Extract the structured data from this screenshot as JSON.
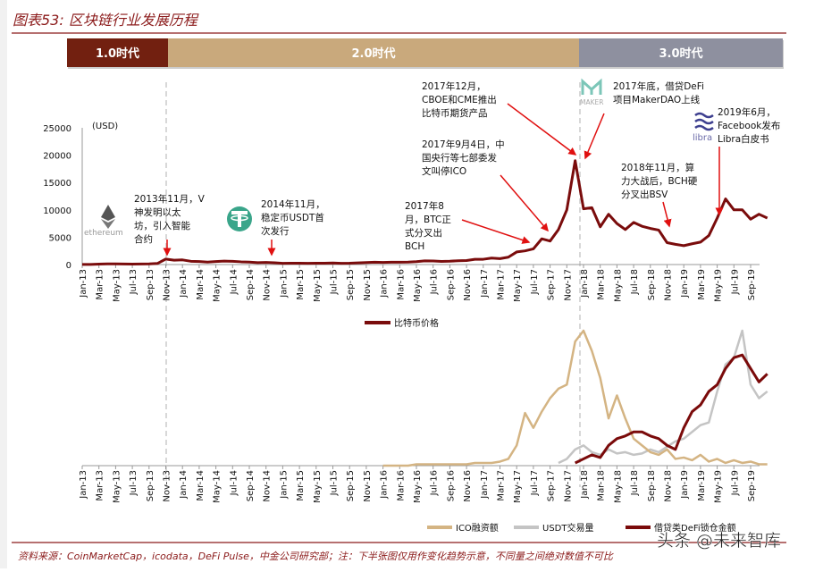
{
  "title": "图表53: 区块链行业发展历程",
  "eras": [
    {
      "label": "1.0时代",
      "color": "#722010",
      "start": "Jan-13",
      "end": "Nov-13"
    },
    {
      "label": "2.0时代",
      "color": "#c9a97c",
      "start": "Nov-13",
      "end": "Dec-17"
    },
    {
      "label": "3.0时代",
      "color": "#8e909f",
      "start": "Dec-17",
      "end": "Nov-19"
    }
  ],
  "annotations": [
    {
      "id": "ethereum",
      "lines": [
        "2013年11月，V",
        "神发明以太",
        "坊，引入智能",
        "合约"
      ],
      "logo_text": "ethereum",
      "icon": "ethereum-logo"
    },
    {
      "id": "usdt",
      "lines": [
        "2014年11月，",
        "稳定币USDT首",
        "次发行"
      ],
      "icon": "tether-logo"
    },
    {
      "id": "bch",
      "lines": [
        "2017年8",
        "月，BTC正",
        "式分叉出",
        "BCH"
      ]
    },
    {
      "id": "ico-ban",
      "lines": [
        "2017年9月4日，中",
        "国央行等七部委发",
        "文叫停ICO"
      ]
    },
    {
      "id": "futures",
      "lines": [
        "2017年12月，",
        "CBOE和CME推出",
        "比特币期货产品"
      ]
    },
    {
      "id": "makerdao",
      "lines": [
        "2017年底，借贷DeFi",
        "项目MakerDAO上线"
      ],
      "logo_text": "MAKER",
      "icon": "maker-logo"
    },
    {
      "id": "bsv",
      "lines": [
        "2018年11月，算",
        "力大战后，BCH硬",
        "分叉出BSV"
      ]
    },
    {
      "id": "libra",
      "lines": [
        "2019年6月，",
        "Facebook发布",
        "Libra白皮书"
      ],
      "logo_text": "libra",
      "icon": "libra-logo"
    }
  ],
  "chart_data": [
    {
      "type": "line",
      "ylabel": "(USD)",
      "ylim": [
        0,
        25000
      ],
      "yticks": [
        "0",
        "5000",
        "10000",
        "15000",
        "20000",
        "25000"
      ],
      "xtick_labels": [
        "Jan-13",
        "Mar-13",
        "May-13",
        "Jul-13",
        "Sep-13",
        "Nov-13",
        "Jan-14",
        "Mar-14",
        "May-14",
        "Jul-14",
        "Sep-14",
        "Nov-14",
        "Jan-15",
        "Mar-15",
        "May-15",
        "Jul-15",
        "Sep-15",
        "Nov-15",
        "Jan-16",
        "Mar-16",
        "May-16",
        "Jul-16",
        "Sep-16",
        "Nov-16",
        "Jan-17",
        "Mar-17",
        "May-17",
        "Jul-17",
        "Sep-17",
        "Nov-17",
        "Jan-18",
        "Mar-18",
        "May-18",
        "Jul-18",
        "Sep-18",
        "Nov-18",
        "Jan-19",
        "Mar-19",
        "May-19",
        "Jul-19",
        "Sep-19"
      ],
      "x_start": "Jan-13",
      "series": [
        {
          "name": "比特币价格",
          "color": "#7a0c0c",
          "values": [
            15,
            30,
            90,
            130,
            120,
            100,
            90,
            110,
            130,
            200,
            1000,
            800,
            850,
            600,
            550,
            450,
            550,
            630,
            600,
            500,
            450,
            350,
            380,
            320,
            220,
            250,
            250,
            230,
            240,
            250,
            280,
            230,
            240,
            300,
            370,
            430,
            380,
            420,
            420,
            450,
            530,
            670,
            650,
            580,
            610,
            700,
            740,
            960,
            970,
            1190,
            1080,
            1350,
            2300,
            2500,
            2870,
            4700,
            4300,
            6400,
            10000,
            19000,
            10200,
            10400,
            6900,
            9200,
            7500,
            6400,
            7700,
            7000,
            6600,
            6300,
            4000,
            3700,
            3450,
            3800,
            4100,
            5300,
            8500,
            12000,
            10000,
            10000,
            8300,
            9200,
            8500
          ]
        }
      ],
      "legend": "bottom-center"
    },
    {
      "type": "line",
      "note": "",
      "xtick_labels": [
        "Jan-13",
        "Mar-13",
        "May-13",
        "Jul-13",
        "Sep-13",
        "Nov-13",
        "Jan-14",
        "Mar-14",
        "May-14",
        "Jul-14",
        "Sep-14",
        "Nov-14",
        "Jan-15",
        "Mar-15",
        "May-15",
        "Jul-15",
        "Sep-15",
        "Nov-15",
        "Jan-16",
        "Mar-16",
        "May-16",
        "Jul-16",
        "Sep-16",
        "Nov-16",
        "Jan-17",
        "Mar-17",
        "May-17",
        "Jul-17",
        "Sep-17",
        "Nov-17",
        "Jan-18",
        "Mar-18",
        "May-18",
        "Jul-18",
        "Sep-18",
        "Nov-18",
        "Jan-19",
        "Mar-19",
        "May-19",
        "Jul-19",
        "Sep-19"
      ],
      "x_start": "Jan-13",
      "ylim": [
        0,
        100
      ],
      "series": [
        {
          "name": "ICO融资额",
          "color": "#d4b483",
          "start": "Jan-16",
          "values": [
            0,
            0,
            0,
            0,
            1,
            1,
            1,
            1,
            1,
            1,
            1,
            2,
            2,
            2,
            3,
            5,
            15,
            39,
            28,
            40,
            50,
            57,
            60,
            92,
            100,
            85,
            65,
            35,
            52,
            35,
            20,
            15,
            10,
            8,
            12,
            5,
            6,
            4,
            8,
            3,
            5,
            2,
            4,
            2,
            3,
            1,
            1
          ]
        },
        {
          "name": "USDT交易量",
          "color": "#c4c4c4",
          "start": "Oct-17",
          "values": [
            2,
            5,
            12,
            15,
            10,
            8,
            12,
            9,
            10,
            8,
            9,
            12,
            10,
            14,
            18,
            20,
            25,
            30,
            32,
            55,
            75,
            80,
            100,
            60,
            50,
            55
          ]
        },
        {
          "name": "借贷类DeFi锁仓金额",
          "color": "#7a0a0a",
          "start": "Dec-17",
          "values": [
            2,
            5,
            8,
            6,
            15,
            20,
            22,
            25,
            25,
            22,
            20,
            15,
            12,
            28,
            40,
            45,
            55,
            60,
            72,
            80,
            82,
            72,
            62,
            68
          ]
        }
      ],
      "legend": "bottom-center"
    }
  ],
  "source": "资料来源：CoinMarketCap，icodata，DeFi Pulse，中金公司研究部；注：下半张图仅用作变化趋势示意，不同量之间绝对数值不可比",
  "watermark": "头条 @未来智库"
}
